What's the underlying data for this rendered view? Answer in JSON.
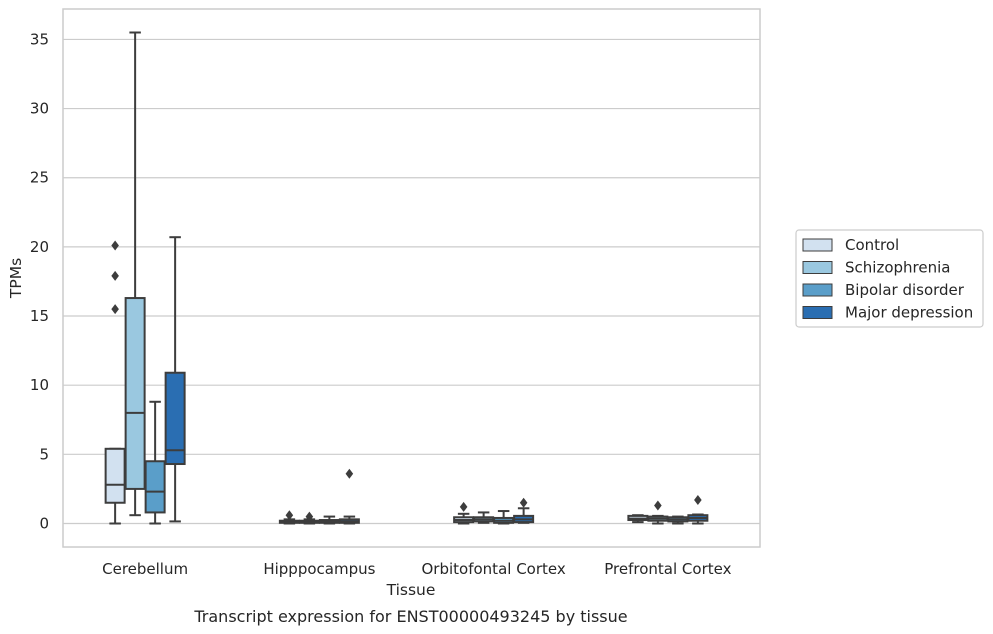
{
  "chart_data": {
    "type": "boxplot",
    "title": "",
    "caption": "Transcript expression for ENST00000493245 by tissue",
    "xlabel": "Tissue",
    "ylabel": "TPMs",
    "ylim": [
      -1.7,
      37.2
    ],
    "yticks": [
      0,
      5,
      10,
      15,
      20,
      25,
      30,
      35
    ],
    "grid": "horizontal",
    "legend_position": "right",
    "categories": [
      "Cerebellum",
      "Hipppocampus",
      "Orbitofontal Cortex",
      "Prefrontal Cortex"
    ],
    "series": [
      {
        "name": "Control",
        "color": "#d2e1f0",
        "boxes": [
          {
            "whisker_low": 0.0,
            "q1": 1.5,
            "median": 2.8,
            "q3": 5.4,
            "whisker_high": 5.4,
            "outliers": [
              15.5,
              17.9,
              20.1
            ]
          },
          {
            "whisker_low": 0.0,
            "q1": 0.05,
            "median": 0.1,
            "q3": 0.2,
            "whisker_high": 0.3,
            "outliers": [
              0.6
            ]
          },
          {
            "whisker_low": 0.0,
            "q1": 0.1,
            "median": 0.25,
            "q3": 0.45,
            "whisker_high": 0.7,
            "outliers": [
              1.2
            ]
          },
          {
            "whisker_low": 0.1,
            "q1": 0.25,
            "median": 0.35,
            "q3": 0.55,
            "whisker_high": 0.6,
            "outliers": []
          }
        ]
      },
      {
        "name": "Schizophrenia",
        "color": "#9ac8e0",
        "boxes": [
          {
            "whisker_low": 0.6,
            "q1": 2.5,
            "median": 8.0,
            "q3": 16.3,
            "whisker_high": 35.5,
            "outliers": []
          },
          {
            "whisker_low": 0.0,
            "q1": 0.05,
            "median": 0.1,
            "q3": 0.2,
            "whisker_high": 0.3,
            "outliers": [
              0.5
            ]
          },
          {
            "whisker_low": 0.05,
            "q1": 0.15,
            "median": 0.3,
            "q3": 0.45,
            "whisker_high": 0.8,
            "outliers": []
          },
          {
            "whisker_low": 0.0,
            "q1": 0.2,
            "median": 0.35,
            "q3": 0.5,
            "whisker_high": 0.55,
            "outliers": [
              1.3
            ]
          }
        ]
      },
      {
        "name": "Bipolar disorder",
        "color": "#5a9ec9",
        "boxes": [
          {
            "whisker_low": 0.0,
            "q1": 0.8,
            "median": 2.3,
            "q3": 4.5,
            "whisker_high": 8.8,
            "outliers": []
          },
          {
            "whisker_low": 0.0,
            "q1": 0.05,
            "median": 0.15,
            "q3": 0.25,
            "whisker_high": 0.5,
            "outliers": []
          },
          {
            "whisker_low": 0.0,
            "q1": 0.05,
            "median": 0.2,
            "q3": 0.4,
            "whisker_high": 0.9,
            "outliers": []
          },
          {
            "whisker_low": 0.0,
            "q1": 0.15,
            "median": 0.3,
            "q3": 0.45,
            "whisker_high": 0.5,
            "outliers": []
          }
        ]
      },
      {
        "name": "Major depression",
        "color": "#2a6eb2",
        "boxes": [
          {
            "whisker_low": 0.15,
            "q1": 4.3,
            "median": 5.3,
            "q3": 10.9,
            "whisker_high": 20.7,
            "outliers": []
          },
          {
            "whisker_low": 0.0,
            "q1": 0.05,
            "median": 0.15,
            "q3": 0.3,
            "whisker_high": 0.5,
            "outliers": [
              3.6
            ]
          },
          {
            "whisker_low": 0.05,
            "q1": 0.1,
            "median": 0.3,
            "q3": 0.55,
            "whisker_high": 1.1,
            "outliers": [
              1.5
            ]
          },
          {
            "whisker_low": 0.0,
            "q1": 0.2,
            "median": 0.4,
            "q3": 0.6,
            "whisker_high": 0.65,
            "outliers": [
              1.7
            ]
          }
        ]
      }
    ]
  }
}
